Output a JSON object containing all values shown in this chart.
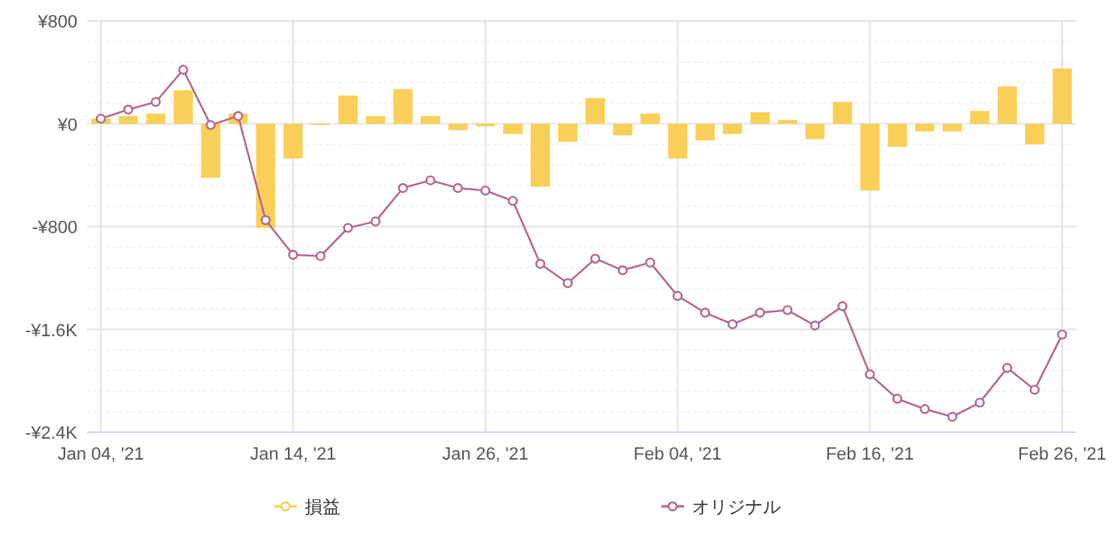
{
  "chart_data": {
    "type": "bar",
    "categories": [
      "Jan 04, '21",
      null,
      null,
      null,
      null,
      null,
      null,
      "Jan 14, '21",
      null,
      null,
      null,
      null,
      null,
      null,
      "Jan 26, '21",
      null,
      null,
      null,
      null,
      null,
      null,
      "Feb 04, '21",
      null,
      null,
      null,
      null,
      null,
      null,
      "Feb 16, '21",
      null,
      null,
      null,
      null,
      null,
      null,
      "Feb 26, '21"
    ],
    "series": [
      {
        "name": "損益",
        "color": "#f9cf57",
        "values": [
          40,
          60,
          80,
          260,
          -420,
          80,
          -810,
          -270,
          -10,
          220,
          60,
          270,
          60,
          -50,
          -20,
          -80,
          -490,
          -140,
          200,
          -90,
          80,
          -270,
          -130,
          -80,
          90,
          30,
          -120,
          170,
          -520,
          -180,
          -60,
          -60,
          100,
          290,
          -160,
          430
        ]
      },
      {
        "name": "オリジナル",
        "type": "line",
        "color": "#b5678f",
        "marker": "circle",
        "values": [
          40,
          110,
          170,
          420,
          -10,
          60,
          -750,
          -1020,
          -1030,
          -810,
          -760,
          -500,
          -440,
          -500,
          -520,
          -600,
          -1090,
          -1240,
          -1050,
          -1140,
          -1080,
          -1340,
          -1470,
          -1560,
          -1470,
          -1450,
          -1570,
          -1420,
          -1950,
          -2140,
          -2220,
          -2280,
          -2170,
          -1900,
          -2070,
          -1640
        ]
      }
    ],
    "ylim": [
      -2400,
      800
    ],
    "yticks": [
      {
        "value": 800,
        "label": "¥800"
      },
      {
        "value": 640,
        "label": null
      },
      {
        "value": 480,
        "label": null
      },
      {
        "value": 320,
        "label": null
      },
      {
        "value": 160,
        "label": null
      },
      {
        "value": 0,
        "label": "¥0"
      },
      {
        "value": -160,
        "label": null
      },
      {
        "value": -320,
        "label": null
      },
      {
        "value": -480,
        "label": null
      },
      {
        "value": -640,
        "label": null
      },
      {
        "value": -800,
        "label": "-¥800"
      },
      {
        "value": -960,
        "label": null
      },
      {
        "value": -1120,
        "label": null
      },
      {
        "value": -1280,
        "label": null
      },
      {
        "value": -1440,
        "label": null
      },
      {
        "value": -1600,
        "label": "-¥1.6K"
      },
      {
        "value": -1760,
        "label": null
      },
      {
        "value": -1920,
        "label": null
      },
      {
        "value": -2080,
        "label": null
      },
      {
        "value": -2240,
        "label": null
      },
      {
        "value": -2400,
        "label": "-¥2.4K"
      }
    ],
    "grid": true,
    "legend": "bottom"
  }
}
